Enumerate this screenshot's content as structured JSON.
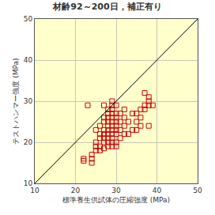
{
  "chart_data": {
    "type": "scatter",
    "title": "材齢92～200日，補正有り",
    "x_label": "標準養生供試体の圧縮強度 (MPa)",
    "y_label": "テストハンマー強度 (MPa)",
    "xlim": [
      10,
      50
    ],
    "ylim": [
      10,
      50
    ],
    "xticks": [
      10,
      20,
      30,
      40,
      50
    ],
    "yticks": [
      10,
      20,
      30,
      40,
      50
    ],
    "grid": true,
    "series": [
      {
        "type": "scatter",
        "color": "#cc0000",
        "marker": "square-open",
        "x": [
          22,
          22,
          24,
          24,
          24,
          25,
          25,
          25,
          25,
          26,
          26,
          26,
          26,
          26,
          27,
          27,
          27,
          27,
          27,
          27,
          27,
          27,
          28,
          28,
          28,
          28,
          28,
          28,
          28,
          28,
          28,
          28,
          29,
          29,
          29,
          29,
          29,
          29,
          29,
          29,
          29,
          29,
          29,
          29,
          30,
          30,
          30,
          30,
          30,
          30,
          30,
          30,
          30,
          31,
          31,
          31,
          31,
          32,
          32,
          32,
          32,
          33,
          33,
          34,
          34,
          35,
          35,
          35,
          36,
          36,
          36,
          37,
          37,
          37,
          38,
          38,
          38,
          38,
          23,
          39
        ],
        "values": [
          16,
          15.5,
          17,
          16,
          15,
          18,
          19,
          23,
          20,
          21,
          22,
          19,
          18,
          24,
          20,
          22,
          23,
          25,
          21,
          26,
          18.5,
          29,
          20,
          22,
          24,
          25,
          26,
          27,
          28,
          23,
          21,
          19,
          21,
          22,
          23,
          24,
          25,
          26,
          27,
          28,
          29,
          20,
          30,
          19,
          20,
          22,
          24,
          25,
          26,
          27,
          29,
          23,
          19,
          21,
          23,
          25,
          27,
          22,
          24,
          26,
          28,
          22,
          25,
          23,
          27,
          23,
          25,
          27,
          24,
          26,
          28,
          29,
          32,
          28,
          31,
          24,
          29,
          30,
          29,
          29
        ]
      },
      {
        "type": "line",
        "color": "#000000",
        "line_style": "solid",
        "x": [
          10,
          50
        ],
        "values": [
          10,
          50
        ]
      }
    ]
  }
}
